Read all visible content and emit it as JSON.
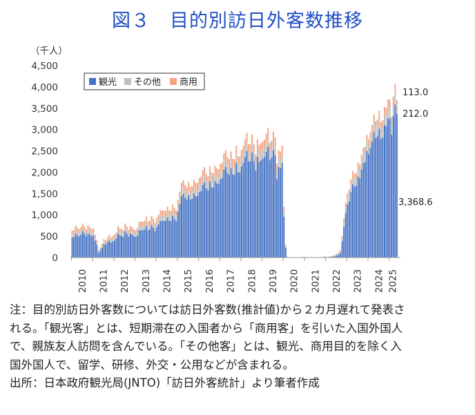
{
  "title": "図３　目的別訪日外客数推移",
  "notes": [
    "注：目的別訪日外客数については訪日外客数(推計値)から２カ月遅れて発表さ",
    "れる。「観光客」とは、短期滞在の入国者から「商用客」を引いた入国外国人",
    "で、親族友人訪問を含んでいる。「その他客」とは、観光、商用目的を除く入",
    "国外国人で、留学、研修、外交・公用などが含まれる。",
    "出所：日本政府観光局(JNTO)「訪日外客統計」より筆者作成"
  ],
  "chart_data": {
    "type": "bar",
    "stacked": true,
    "ylabel": "（千人）",
    "ylim": [
      0,
      4500
    ],
    "yticks": [
      "0",
      "500",
      "1,000",
      "1,500",
      "2,000",
      "2,500",
      "3,000",
      "3,500",
      "4,000",
      "4,500"
    ],
    "x_tick_labels": [
      "2010",
      "2011",
      "2012",
      "2013",
      "2014",
      "2015",
      "2016",
      "2017",
      "2018",
      "2019",
      "2020",
      "2021",
      "2022",
      "2023",
      "2024",
      "2025"
    ],
    "grid": false,
    "legend_position": "top-left",
    "colors": {
      "観光": "#4472c4",
      "その他": "#bfbfbf",
      "商用": "#f4a582"
    },
    "annotations": [
      "113.0",
      "212.0",
      "3,368.6"
    ],
    "yearly": {
      "years": [
        2010,
        2011,
        2012,
        2013,
        2014,
        2015,
        2016,
        2017,
        2018,
        2019,
        2020,
        2021,
        2022,
        2023,
        2024,
        2025
      ],
      "months": [
        12,
        12,
        12,
        12,
        12,
        12,
        12,
        12,
        12,
        12,
        12,
        12,
        12,
        12,
        12,
        5
      ],
      "series": [
        {
          "name": "観光",
          "values": [
            [
              470,
              480,
              560,
              520,
              500,
              540,
              620,
              560,
              500,
              570,
              540,
              500
            ],
            [
              520,
              400,
              300,
              110,
              170,
              230,
              320,
              300,
              360,
              400,
              350,
              380
            ],
            [
              400,
              450,
              560,
              520,
              510,
              480,
              620,
              560,
              490,
              560,
              540,
              500
            ],
            [
              480,
              520,
              640,
              640,
              640,
              660,
              740,
              640,
              660,
              760,
              700,
              620
            ],
            [
              720,
              780,
              860,
              860,
              860,
              860,
              940,
              860,
              860,
              980,
              900,
              860
            ],
            [
              1080,
              1260,
              1440,
              1500,
              1400,
              1360,
              1460,
              1360,
              1380,
              1500,
              1440,
              1440
            ],
            [
              1540,
              1560,
              1700,
              1760,
              1620,
              1580,
              1780,
              1650,
              1640,
              1790,
              1740,
              1720
            ],
            [
              1840,
              1860,
              2060,
              2120,
              1980,
              1940,
              2100,
              1950,
              1940,
              2220,
              2000,
              2000
            ],
            [
              2140,
              2220,
              2360,
              2500,
              2260,
              2260,
              2460,
              2260,
              2040,
              2360,
              2240,
              2280
            ],
            [
              2320,
              2360,
              2480,
              2600,
              2280,
              2340,
              2520,
              2400,
              1840,
              2120,
              2100,
              2220
            ],
            [
              960,
              220,
              8,
              1,
              0,
              0,
              0,
              0,
              1,
              2,
              5,
              8
            ],
            [
              4,
              3,
              2,
              2,
              1,
              1,
              2,
              2,
              1,
              1,
              5,
              15
            ],
            [
              6,
              10,
              14,
              18,
              24,
              36,
              50,
              70,
              110,
              380,
              720,
              1040
            ],
            [
              1240,
              1320,
              1540,
              1720,
              1660,
              1680,
              1900,
              1860,
              2060,
              2220,
              2240,
              2500
            ],
            [
              2420,
              2570,
              2720,
              2940,
              2800,
              2840,
              3020,
              2780,
              2820,
              3100,
              3080,
              3260
            ],
            [
              3260,
              2880,
              3320,
              3590,
              3368.6
            ]
          ]
        },
        {
          "name": "その他",
          "values": [
            [
              70,
              70,
              80,
              75,
              70,
              75,
              80,
              75,
              70,
              80,
              75,
              70
            ],
            [
              70,
              60,
              50,
              30,
              40,
              45,
              55,
              50,
              55,
              60,
              55,
              60
            ],
            [
              60,
              65,
              80,
              75,
              70,
              70,
              80,
              75,
              70,
              80,
              75,
              70
            ],
            [
              70,
              75,
              90,
              90,
              90,
              90,
              100,
              90,
              90,
              100,
              95,
              90
            ],
            [
              100,
              105,
              115,
              115,
              110,
              110,
              120,
              115,
              115,
              125,
              120,
              115
            ],
            [
              130,
              140,
              150,
              155,
              145,
              140,
              150,
              145,
              145,
              155,
              150,
              150
            ],
            [
              160,
              160,
              170,
              175,
              165,
              160,
              175,
              165,
              165,
              175,
              170,
              170
            ],
            [
              175,
              175,
              190,
              195,
              185,
              180,
              190,
              180,
              180,
              200,
              185,
              185
            ],
            [
              190,
              195,
              205,
              210,
              200,
              195,
              210,
              195,
              185,
              205,
              195,
              200
            ],
            [
              200,
              200,
              210,
              215,
              200,
              200,
              215,
              205,
              175,
              195,
              190,
              200
            ],
            [
              110,
              40,
              8,
              1,
              0,
              0,
              0,
              0,
              1,
              2,
              3,
              4
            ],
            [
              3,
              3,
              2,
              2,
              1,
              1,
              2,
              2,
              1,
              1,
              3,
              6
            ],
            [
              5,
              6,
              8,
              10,
              12,
              16,
              20,
              25,
              35,
              70,
              110,
              140
            ],
            [
              150,
              155,
              170,
              180,
              175,
              175,
              190,
              190,
              200,
              210,
              210,
              220
            ],
            [
              210,
              220,
              230,
              240,
              235,
              235,
              245,
              230,
              235,
              250,
              250,
              260
            ],
            [
              260,
              240,
              265,
              275,
              212.0
            ]
          ]
        },
        {
          "name": "商用",
          "values": [
            [
              90,
              100,
              110,
              100,
              95,
              100,
              100,
              95,
              90,
              105,
              100,
              95
            ],
            [
              95,
              80,
              60,
              30,
              40,
              50,
              60,
              55,
              60,
              70,
              65,
              65
            ],
            [
              75,
              80,
              100,
              95,
              90,
              90,
              100,
              95,
              90,
              100,
              95,
              90
            ],
            [
              90,
              95,
              110,
              110,
              110,
              110,
              120,
              110,
              110,
              120,
              115,
              110
            ],
            [
              115,
              120,
              135,
              130,
              125,
              125,
              135,
              125,
              125,
              140,
              135,
              130
            ],
            [
              140,
              150,
              160,
              165,
              155,
              150,
              160,
              155,
              155,
              165,
              160,
              160
            ],
            [
              165,
              170,
              180,
              185,
              175,
              170,
              185,
              175,
              175,
              185,
              180,
              180
            ],
            [
              180,
              185,
              195,
              200,
              190,
              185,
              195,
              185,
              185,
              205,
              190,
              190
            ],
            [
              195,
              200,
              210,
              215,
              205,
              200,
              215,
              200,
              190,
              210,
              200,
              205
            ],
            [
              205,
              205,
              215,
              220,
              205,
              205,
              220,
              210,
              180,
              200,
              195,
              205
            ],
            [
              120,
              40,
              10,
              1,
              0,
              0,
              0,
              0,
              1,
              2,
              3,
              4
            ],
            [
              3,
              3,
              2,
              2,
              1,
              1,
              2,
              2,
              1,
              1,
              3,
              6
            ],
            [
              5,
              6,
              8,
              10,
              12,
              15,
              20,
              25,
              35,
              60,
              90,
              110
            ],
            [
              110,
              115,
              125,
              130,
              125,
              125,
              135,
              130,
              140,
              150,
              150,
              155
            ],
            [
              145,
              150,
              160,
              170,
              165,
              165,
              175,
              165,
              165,
              180,
              180,
              185
            ],
            [
              185,
              175,
              190,
              195,
              113.0
            ]
          ]
        }
      ]
    }
  }
}
